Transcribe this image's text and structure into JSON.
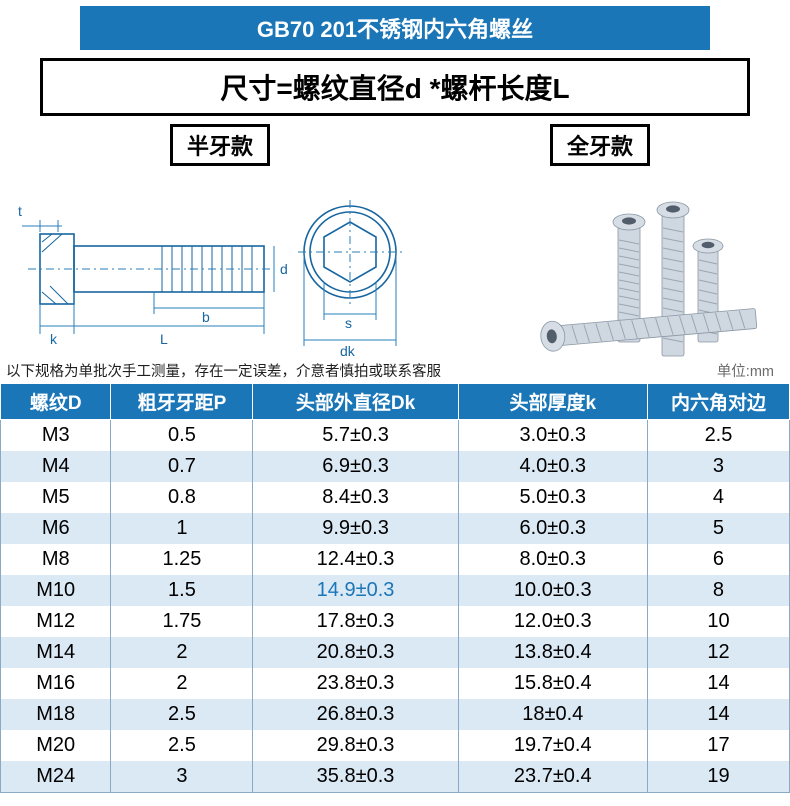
{
  "title": "GB70 201不锈钢内六角螺丝",
  "formula": "尺寸=螺纹直径d *螺杆长度L",
  "variant_left": "半牙款",
  "variant_right": "全牙款",
  "diagram": {
    "labels": {
      "t": "t",
      "k": "k",
      "L": "L",
      "b": "b",
      "d": "d",
      "s": "s",
      "dk": "dk"
    }
  },
  "note": "以下规格为单批次手工测量，存在一定误差，介意者慎拍或联系客服",
  "unit": "单位:mm",
  "table": {
    "columns": [
      "螺纹D",
      "粗牙牙距P",
      "头部外直径Dk",
      "头部厚度k",
      "内六角对边"
    ],
    "col_widths": [
      "14%",
      "18%",
      "26%",
      "24%",
      "18%"
    ],
    "highlight": {
      "row": 5,
      "col": 2
    },
    "rows": [
      [
        "M3",
        "0.5",
        "5.7±0.3",
        "3.0±0.3",
        "2.5"
      ],
      [
        "M4",
        "0.7",
        "6.9±0.3",
        "4.0±0.3",
        "3"
      ],
      [
        "M5",
        "0.8",
        "8.4±0.3",
        "5.0±0.3",
        "4"
      ],
      [
        "M6",
        "1",
        "9.9±0.3",
        "6.0±0.3",
        "5"
      ],
      [
        "M8",
        "1.25",
        "12.4±0.3",
        "8.0±0.3",
        "6"
      ],
      [
        "M10",
        "1.5",
        "14.9±0.3",
        "10.0±0.3",
        "8"
      ],
      [
        "M12",
        "1.75",
        "17.8±0.3",
        "12.0±0.3",
        "10"
      ],
      [
        "M14",
        "2",
        "20.8±0.3",
        "13.8±0.4",
        "12"
      ],
      [
        "M16",
        "2",
        "23.8±0.3",
        "15.8±0.4",
        "14"
      ],
      [
        "M18",
        "2.5",
        "26.8±0.3",
        "18±0.4",
        "14"
      ],
      [
        "M20",
        "2.5",
        "29.8±0.3",
        "19.7±0.4",
        "17"
      ],
      [
        "M24",
        "3",
        "35.8±0.3",
        "23.7±0.4",
        "19"
      ]
    ]
  }
}
